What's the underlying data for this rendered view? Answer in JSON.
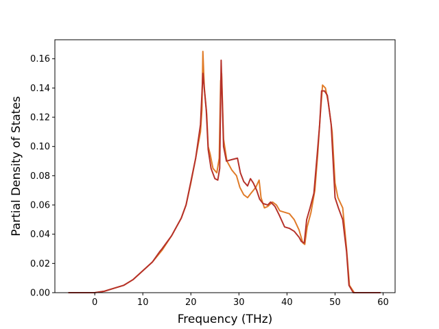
{
  "chart_data": {
    "type": "line",
    "title": "",
    "xlabel": "Frequency (THz)",
    "ylabel": "Partial Density of States",
    "xlim": [
      -8.3,
      62.5
    ],
    "ylim": [
      0,
      0.173
    ],
    "xticks": [
      0,
      10,
      20,
      30,
      40,
      50,
      60
    ],
    "yticks": [
      0.0,
      0.02,
      0.04,
      0.06,
      0.08,
      0.1,
      0.12,
      0.14,
      0.16
    ],
    "ytick_labels": [
      "0.00",
      "0.02",
      "0.04",
      "0.06",
      "0.08",
      "0.10",
      "0.12",
      "0.14",
      "0.16"
    ],
    "grid": false,
    "legend": "none",
    "series": [
      {
        "color": "#e07b28",
        "points": [
          [
            -5.5,
            0
          ],
          [
            0,
            0
          ],
          [
            2,
            0.001
          ],
          [
            4,
            0.003
          ],
          [
            6,
            0.005
          ],
          [
            8,
            0.009
          ],
          [
            10,
            0.015
          ],
          [
            12,
            0.021
          ],
          [
            14,
            0.029
          ],
          [
            16,
            0.039
          ],
          [
            18,
            0.051
          ],
          [
            19,
            0.06
          ],
          [
            20,
            0.075
          ],
          [
            21,
            0.092
          ],
          [
            22,
            0.11
          ],
          [
            22.3,
            0.125
          ],
          [
            22.5,
            0.165
          ],
          [
            22.8,
            0.14
          ],
          [
            23.3,
            0.122
          ],
          [
            23.6,
            0.1
          ],
          [
            24,
            0.095
          ],
          [
            24.6,
            0.085
          ],
          [
            25.4,
            0.082
          ],
          [
            25.9,
            0.092
          ],
          [
            26.2,
            0.145
          ],
          [
            26.4,
            0.15
          ],
          [
            26.8,
            0.105
          ],
          [
            27.5,
            0.09
          ],
          [
            28.5,
            0.084
          ],
          [
            29.5,
            0.08
          ],
          [
            30.2,
            0.072
          ],
          [
            31,
            0.067
          ],
          [
            31.8,
            0.065
          ],
          [
            32.5,
            0.068
          ],
          [
            33.5,
            0.072
          ],
          [
            34.2,
            0.077
          ],
          [
            34.6,
            0.065
          ],
          [
            35.3,
            0.058
          ],
          [
            36,
            0.059
          ],
          [
            37,
            0.062
          ],
          [
            37.8,
            0.06
          ],
          [
            38.5,
            0.056
          ],
          [
            39.5,
            0.055
          ],
          [
            40.5,
            0.054
          ],
          [
            41.5,
            0.05
          ],
          [
            42.5,
            0.043
          ],
          [
            43.3,
            0.034
          ],
          [
            43.7,
            0.033
          ],
          [
            44.2,
            0.045
          ],
          [
            45,
            0.055
          ],
          [
            45.8,
            0.07
          ],
          [
            46.4,
            0.095
          ],
          [
            46.9,
            0.12
          ],
          [
            47.4,
            0.142
          ],
          [
            48,
            0.14
          ],
          [
            48.6,
            0.13
          ],
          [
            49.4,
            0.11
          ],
          [
            50,
            0.075
          ],
          [
            50.6,
            0.065
          ],
          [
            51.6,
            0.058
          ],
          [
            52.4,
            0.03
          ],
          [
            53,
            0.005
          ],
          [
            54,
            0
          ],
          [
            59.5,
            0
          ]
        ]
      },
      {
        "color": "#b5312a",
        "points": [
          [
            -5.5,
            0
          ],
          [
            0,
            0
          ],
          [
            2,
            0.001
          ],
          [
            4,
            0.003
          ],
          [
            6,
            0.005
          ],
          [
            8,
            0.009
          ],
          [
            10,
            0.015
          ],
          [
            12,
            0.021
          ],
          [
            13.5,
            0.028
          ],
          [
            14,
            0.03
          ],
          [
            16,
            0.039
          ],
          [
            18,
            0.051
          ],
          [
            19,
            0.06
          ],
          [
            20,
            0.076
          ],
          [
            21,
            0.092
          ],
          [
            22,
            0.115
          ],
          [
            22.5,
            0.15
          ],
          [
            23.2,
            0.125
          ],
          [
            23.6,
            0.098
          ],
          [
            24.2,
            0.085
          ],
          [
            25,
            0.078
          ],
          [
            25.6,
            0.077
          ],
          [
            26,
            0.085
          ],
          [
            26.3,
            0.159
          ],
          [
            26.8,
            0.1
          ],
          [
            27.4,
            0.09
          ],
          [
            28.5,
            0.091
          ],
          [
            29.7,
            0.092
          ],
          [
            30.3,
            0.082
          ],
          [
            31,
            0.076
          ],
          [
            31.8,
            0.073
          ],
          [
            32.4,
            0.078
          ],
          [
            33,
            0.075
          ],
          [
            33.7,
            0.07
          ],
          [
            34.3,
            0.064
          ],
          [
            35,
            0.061
          ],
          [
            36,
            0.06
          ],
          [
            36.6,
            0.062
          ],
          [
            37.5,
            0.059
          ],
          [
            38.4,
            0.053
          ],
          [
            39.5,
            0.045
          ],
          [
            40.5,
            0.044
          ],
          [
            41.5,
            0.042
          ],
          [
            42.5,
            0.038
          ],
          [
            43,
            0.035
          ],
          [
            43.6,
            0.034
          ],
          [
            44.1,
            0.05
          ],
          [
            44.8,
            0.058
          ],
          [
            45.6,
            0.068
          ],
          [
            46.3,
            0.095
          ],
          [
            46.8,
            0.115
          ],
          [
            47.2,
            0.138
          ],
          [
            47.8,
            0.138
          ],
          [
            48.4,
            0.135
          ],
          [
            49.2,
            0.115
          ],
          [
            50,
            0.065
          ],
          [
            50.7,
            0.058
          ],
          [
            51.6,
            0.05
          ],
          [
            52.4,
            0.028
          ],
          [
            52.9,
            0.005
          ],
          [
            53.8,
            0
          ],
          [
            59.5,
            0
          ]
        ]
      }
    ]
  }
}
